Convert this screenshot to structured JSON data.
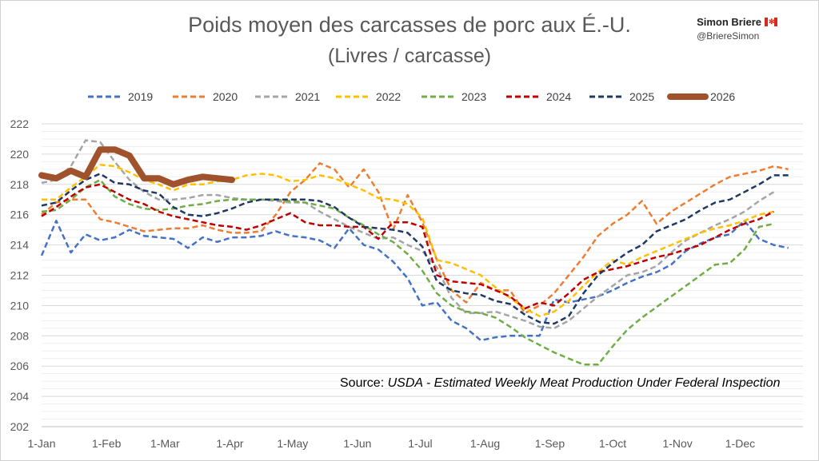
{
  "header": {
    "title": "Poids moyen des carcasses de porc aux É.-U.",
    "subtitle": "(Livres / carcasse)",
    "author_name": "Simon Briere",
    "author_handle": "@BriereSimon"
  },
  "source": {
    "prefix": "Source: ",
    "text": "USDA - Estimated Weekly Meat Production Under Federal Inspection"
  },
  "chart_data": {
    "type": "line",
    "x_unit": "week of year",
    "ylim": [
      202,
      222
    ],
    "yticks": [
      202,
      204,
      206,
      208,
      210,
      212,
      214,
      216,
      218,
      220,
      222
    ],
    "xticks": [
      {
        "label": "1-Jan",
        "week": 1
      },
      {
        "label": "1-Feb",
        "week": 5.43
      },
      {
        "label": "1-Mar",
        "week": 9.43
      },
      {
        "label": "1-Apr",
        "week": 13.86
      },
      {
        "label": "1-May",
        "week": 18.14
      },
      {
        "label": "1-Jun",
        "week": 22.57
      },
      {
        "label": "1-Jul",
        "week": 26.86
      },
      {
        "label": "1-Aug",
        "week": 31.29
      },
      {
        "label": "1-Sep",
        "week": 35.71
      },
      {
        "label": "1-Oct",
        "week": 40
      },
      {
        "label": "1-Nov",
        "week": 44.43
      },
      {
        "label": "1-Dec",
        "week": 48.71
      }
    ],
    "grid": true,
    "legend_position": "top",
    "series": [
      {
        "name": "2019",
        "color": "#4472c4",
        "dash": true,
        "width": 2.5,
        "x": [
          1,
          2,
          3,
          4,
          5,
          6,
          7,
          8,
          9,
          10,
          11,
          12,
          13,
          14,
          15,
          16,
          17,
          18,
          19,
          20,
          21,
          22,
          23,
          24,
          25,
          26,
          27,
          28,
          29,
          30,
          31,
          32,
          33,
          34,
          35,
          36,
          37,
          38,
          39,
          40,
          41,
          42,
          43,
          44,
          45,
          46,
          47,
          48,
          49,
          50,
          51,
          52
        ],
        "y": [
          213.3,
          215.6,
          213.5,
          214.7,
          214.3,
          214.5,
          215.0,
          214.6,
          214.5,
          214.4,
          213.8,
          214.5,
          214.2,
          214.5,
          214.5,
          214.6,
          214.9,
          214.6,
          214.5,
          214.3,
          213.8,
          215.1,
          214.0,
          213.7,
          212.9,
          211.8,
          210.0,
          210.2,
          209.0,
          208.5,
          207.7,
          207.9,
          208.0,
          208.0,
          208.0,
          210.4,
          210.2,
          210.4,
          210.6,
          211.0,
          211.5,
          211.9,
          212.2,
          212.7,
          213.6,
          214.1,
          214.5,
          214.7,
          215.6,
          214.4,
          214.0,
          213.8
        ]
      },
      {
        "name": "2020",
        "color": "#ed7d31",
        "dash": true,
        "width": 2.5,
        "x": [
          1,
          2,
          3,
          4,
          5,
          6,
          7,
          8,
          9,
          10,
          11,
          12,
          13,
          14,
          15,
          16,
          17,
          18,
          19,
          20,
          21,
          22,
          23,
          24,
          25,
          26,
          27,
          28,
          29,
          30,
          31,
          32,
          33,
          34,
          35,
          36,
          37,
          38,
          39,
          40,
          41,
          42,
          43,
          44,
          45,
          46,
          47,
          48,
          49,
          50,
          51,
          52
        ],
        "y": [
          216.0,
          216.8,
          217.0,
          217.0,
          215.7,
          215.5,
          215.2,
          214.9,
          215.0,
          215.1,
          215.1,
          215.3,
          215.0,
          214.8,
          214.8,
          214.9,
          216.0,
          217.5,
          218.3,
          219.4,
          219.0,
          217.8,
          219.0,
          217.5,
          215.0,
          217.3,
          215.5,
          213.0,
          211.0,
          210.2,
          211.5,
          211.0,
          211.0,
          209.5,
          210.0,
          210.8,
          212.0,
          213.2,
          214.6,
          215.4,
          216.0,
          216.9,
          215.4,
          216.2,
          216.8,
          217.4,
          218.0,
          218.5,
          218.7,
          218.9,
          219.2,
          219.0
        ]
      },
      {
        "name": "2021",
        "color": "#a5a5a5",
        "dash": true,
        "width": 2.5,
        "x": [
          1,
          2,
          3,
          4,
          5,
          6,
          7,
          8,
          9,
          10,
          11,
          12,
          13,
          14,
          15,
          16,
          17,
          18,
          19,
          20,
          21,
          22,
          23,
          24,
          25,
          26,
          27,
          28,
          29,
          30,
          31,
          32,
          33,
          34,
          35,
          36,
          37,
          38,
          39,
          40,
          41,
          42,
          43,
          44,
          45,
          46,
          47,
          48,
          49,
          50,
          51
        ],
        "y": [
          218.1,
          218.3,
          219.2,
          220.9,
          220.8,
          219.5,
          218.3,
          217.5,
          217.0,
          217.0,
          217.1,
          217.3,
          217.3,
          217.1,
          217.0,
          217.0,
          216.9,
          216.8,
          216.8,
          216.2,
          215.7,
          215.2,
          214.8,
          214.4,
          214.5,
          214.0,
          213.6,
          212.5,
          210.5,
          209.5,
          209.5,
          209.6,
          209.3,
          209.0,
          208.6,
          208.5,
          209.0,
          209.8,
          210.6,
          211.3,
          212.0,
          212.2,
          212.6,
          213.5,
          214.3,
          214.8,
          215.3,
          215.7,
          216.2,
          216.9,
          217.5
        ]
      },
      {
        "name": "2022",
        "color": "#ffc000",
        "dash": true,
        "width": 2.5,
        "x": [
          1,
          2,
          3,
          4,
          5,
          6,
          7,
          8,
          9,
          10,
          11,
          12,
          13,
          14,
          15,
          16,
          17,
          18,
          19,
          20,
          21,
          22,
          23,
          24,
          25,
          26,
          27,
          28,
          29,
          30,
          31,
          32,
          33,
          34,
          35,
          36,
          37,
          38,
          39,
          40,
          41,
          42,
          43,
          44,
          45,
          46,
          47,
          48,
          49,
          50,
          51
        ],
        "y": [
          217.0,
          217.0,
          217.8,
          218.5,
          219.3,
          219.2,
          218.8,
          218.3,
          218.0,
          217.6,
          218.0,
          218.0,
          218.2,
          218.3,
          218.6,
          218.7,
          218.6,
          218.2,
          218.3,
          218.6,
          218.4,
          218.0,
          217.6,
          217.1,
          217.0,
          216.7,
          215.8,
          213.0,
          212.8,
          212.4,
          212.0,
          211.2,
          210.5,
          209.8,
          209.3,
          209.6,
          210.3,
          211.3,
          212.2,
          213.0,
          212.7,
          213.2,
          213.6,
          214.0,
          214.4,
          214.8,
          215.1,
          215.3,
          215.6,
          216.0,
          216.2
        ]
      },
      {
        "name": "2023",
        "color": "#70ad47",
        "dash": true,
        "width": 2.5,
        "x": [
          1,
          2,
          3,
          4,
          5,
          6,
          7,
          8,
          9,
          10,
          11,
          12,
          13,
          14,
          15,
          16,
          17,
          18,
          19,
          20,
          21,
          22,
          23,
          24,
          25,
          26,
          27,
          28,
          29,
          30,
          31,
          32,
          33,
          34,
          35,
          36,
          37,
          38,
          39,
          40,
          41,
          42,
          43,
          44,
          45,
          46,
          47,
          48,
          49,
          50,
          51
        ],
        "y": [
          216.2,
          216.3,
          217.0,
          217.8,
          218.3,
          217.2,
          216.7,
          216.4,
          216.3,
          216.4,
          216.6,
          216.7,
          216.9,
          217.0,
          217.0,
          217.0,
          217.0,
          216.9,
          216.8,
          216.6,
          216.4,
          215.8,
          215.3,
          214.7,
          214.2,
          213.4,
          212.3,
          210.8,
          210.0,
          209.6,
          209.5,
          209.2,
          208.6,
          207.9,
          207.4,
          206.9,
          206.5,
          206.1,
          206.1,
          207.3,
          208.4,
          209.2,
          209.9,
          210.6,
          211.3,
          212.0,
          212.7,
          212.8,
          213.7,
          215.2,
          215.4
        ]
      },
      {
        "name": "2024",
        "color": "#c00000",
        "dash": true,
        "width": 2.5,
        "x": [
          1,
          2,
          3,
          4,
          5,
          6,
          7,
          8,
          9,
          10,
          11,
          12,
          13,
          14,
          15,
          16,
          17,
          18,
          19,
          20,
          21,
          22,
          23,
          24,
          25,
          26,
          27,
          28,
          29,
          30,
          31,
          32,
          33,
          34,
          35,
          36,
          37,
          38,
          39,
          40,
          41,
          42,
          43,
          44,
          45,
          46,
          47,
          48,
          49,
          50,
          51
        ],
        "y": [
          215.9,
          216.5,
          217.2,
          217.8,
          218.0,
          217.5,
          217.0,
          216.7,
          216.2,
          215.9,
          215.7,
          215.5,
          215.3,
          215.2,
          215.0,
          215.3,
          215.7,
          216.1,
          215.5,
          215.3,
          215.3,
          215.2,
          215.2,
          214.4,
          215.5,
          215.5,
          215.2,
          212.0,
          211.6,
          211.5,
          211.4,
          211.0,
          210.6,
          209.8,
          210.2,
          210.0,
          210.8,
          211.7,
          212.2,
          212.4,
          212.6,
          212.9,
          213.2,
          213.4,
          213.7,
          214.0,
          214.5,
          215.0,
          215.4,
          215.7,
          216.2
        ]
      },
      {
        "name": "2025",
        "color": "#1f3864",
        "dash": true,
        "width": 2.5,
        "x": [
          1,
          2,
          3,
          4,
          5,
          6,
          7,
          8,
          9,
          10,
          11,
          12,
          13,
          14,
          15,
          16,
          17,
          18,
          19,
          20,
          21,
          22,
          23,
          24,
          25,
          26,
          27,
          28,
          29,
          30,
          31,
          32,
          33,
          34,
          35,
          36,
          37,
          38,
          39,
          40,
          41,
          42,
          43,
          44,
          45,
          46,
          47,
          48,
          49,
          50,
          51,
          52
        ],
        "y": [
          216.6,
          216.8,
          217.6,
          218.3,
          218.7,
          218.1,
          218.0,
          217.6,
          217.4,
          216.5,
          216.0,
          215.9,
          216.1,
          216.4,
          216.8,
          217.0,
          217.0,
          217.0,
          217.0,
          216.9,
          216.5,
          215.8,
          215.2,
          215.1,
          215.0,
          214.8,
          213.9,
          211.6,
          211.0,
          210.8,
          210.7,
          210.3,
          210.1,
          209.4,
          208.9,
          208.8,
          209.3,
          210.8,
          212.0,
          212.8,
          213.5,
          214.0,
          214.9,
          215.3,
          215.7,
          216.3,
          216.8,
          217.0,
          217.5,
          218.0,
          218.6,
          218.6
        ]
      },
      {
        "name": "2026",
        "color": "#a0522d",
        "dash": false,
        "width": 8,
        "x": [
          1,
          2,
          3,
          4,
          5,
          6,
          7,
          8,
          9,
          10,
          11,
          12,
          13,
          14
        ],
        "y": [
          218.6,
          218.4,
          218.9,
          218.5,
          220.3,
          220.3,
          219.9,
          218.4,
          218.4,
          218.0,
          218.3,
          218.5,
          218.4,
          218.3
        ]
      }
    ]
  }
}
